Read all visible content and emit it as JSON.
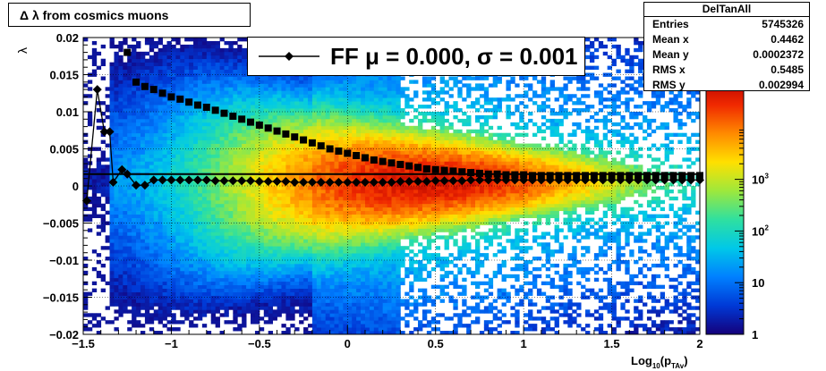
{
  "chart_data": {
    "type": "heatmap",
    "title": "Δ λ from cosmics muons",
    "xlabel": {
      "text": "Log",
      "sub1": "10",
      "mid": "(p",
      "sub2": "TAv",
      "end": ")"
    },
    "ylabel": "λ",
    "xlim": [
      -1.5,
      2
    ],
    "ylim": [
      -0.02,
      0.02
    ],
    "xticks": [
      {
        "v": -1.5,
        "label": "−1.5"
      },
      {
        "v": -1,
        "label": "−1"
      },
      {
        "v": -0.5,
        "label": "−0.5"
      },
      {
        "v": 0,
        "label": "0"
      },
      {
        "v": 0.5,
        "label": "0.5"
      },
      {
        "v": 1,
        "label": "1"
      },
      {
        "v": 1.5,
        "label": "1.5"
      },
      {
        "v": 2,
        "label": "2"
      }
    ],
    "yticks": [
      {
        "v": 0.02,
        "label": "0.02"
      },
      {
        "v": 0.015,
        "label": "0.015"
      },
      {
        "v": 0.01,
        "label": "0.01"
      },
      {
        "v": 0.005,
        "label": "0.005"
      },
      {
        "v": 0,
        "label": "0"
      },
      {
        "v": -0.005,
        "label": "−0.005"
      },
      {
        "v": -0.01,
        "label": "−0.01"
      },
      {
        "v": -0.015,
        "label": "−0.015"
      },
      {
        "v": -0.02,
        "label": "−0.02"
      }
    ],
    "grid": true,
    "colorbar": {
      "scale": "log",
      "range": [
        1,
        100000
      ],
      "ticks": [
        {
          "v": 1,
          "label": "1"
        },
        {
          "v": 10,
          "label": "10"
        },
        {
          "v": 100,
          "label": "10",
          "sup": "2"
        },
        {
          "v": 1000,
          "label": "10",
          "sup": "3"
        }
      ],
      "colors": [
        "#14007a",
        "#0039d6",
        "#0080ff",
        "#00c8e8",
        "#2fe0a0",
        "#9ee83c",
        "#ffe000",
        "#ff8a00",
        "#f02800",
        "#b00000"
      ]
    },
    "legend": {
      "position": "top",
      "text": "FF μ =  0.000, σ =   0.001",
      "marker": "diamond"
    },
    "fit_line_y": 0.0016,
    "series": [
      {
        "marker": "square",
        "x": [
          -1.25,
          -1.2,
          -1.15,
          -1.1,
          -1.05,
          -1.0,
          -0.95,
          -0.9,
          -0.85,
          -0.8,
          -0.75,
          -0.7,
          -0.65,
          -0.6,
          -0.55,
          -0.5,
          -0.45,
          -0.4,
          -0.35,
          -0.3,
          -0.25,
          -0.2,
          -0.15,
          -0.1,
          -0.05,
          0.0,
          0.05,
          0.1,
          0.15,
          0.2,
          0.25,
          0.3,
          0.35,
          0.4,
          0.45,
          0.5,
          0.55,
          0.6,
          0.65,
          0.7,
          0.75,
          0.8,
          0.85,
          0.9,
          0.95,
          1.0,
          1.05,
          1.1,
          1.15,
          1.2,
          1.25,
          1.3,
          1.35,
          1.4,
          1.45,
          1.5,
          1.55,
          1.6,
          1.65,
          1.7,
          1.75,
          1.8,
          1.85,
          1.9,
          1.95,
          2.0
        ],
        "y": [
          0.018,
          0.014,
          0.0134,
          0.013,
          0.0125,
          0.012,
          0.0117,
          0.0113,
          0.0109,
          0.0106,
          0.0102,
          0.0098,
          0.0094,
          0.009,
          0.0086,
          0.0082,
          0.0078,
          0.0074,
          0.007,
          0.0066,
          0.0062,
          0.0058,
          0.0054,
          0.005,
          0.0047,
          0.0044,
          0.0041,
          0.0038,
          0.0035,
          0.0033,
          0.0031,
          0.0029,
          0.0027,
          0.0025,
          0.0023,
          0.0022,
          0.0021,
          0.002,
          0.0019,
          0.0018,
          0.0017,
          0.0016,
          0.0016,
          0.0015,
          0.0015,
          0.0015,
          0.0014,
          0.0014,
          0.0014,
          0.0014,
          0.0014,
          0.0014,
          0.0014,
          0.0014,
          0.0014,
          0.0014,
          0.0014,
          0.0014,
          0.0014,
          0.0014,
          0.0014,
          0.0014,
          0.0014,
          0.0014,
          0.0014,
          0.0014
        ]
      },
      {
        "marker": "diamond",
        "x": [
          -1.48,
          -1.42,
          -1.38,
          -1.35,
          -1.33,
          -1.28,
          -1.25,
          -1.2,
          -1.15,
          -1.1,
          -1.05,
          -1.0,
          -0.95,
          -0.9,
          -0.85,
          -0.8,
          -0.75,
          -0.7,
          -0.65,
          -0.6,
          -0.55,
          -0.5,
          -0.45,
          -0.4,
          -0.35,
          -0.3,
          -0.25,
          -0.2,
          -0.15,
          -0.1,
          -0.05,
          0.0,
          0.05,
          0.1,
          0.15,
          0.2,
          0.25,
          0.3,
          0.35,
          0.4,
          0.45,
          0.5,
          0.55,
          0.6,
          0.65,
          0.7,
          0.75,
          0.8,
          0.85,
          0.9,
          0.95,
          1.0,
          1.05,
          1.1,
          1.15,
          1.2,
          1.25,
          1.3,
          1.35,
          1.4,
          1.45,
          1.5,
          1.55,
          1.6,
          1.65,
          1.7,
          1.75,
          1.8,
          1.85,
          1.9,
          1.95,
          2.0
        ],
        "y": [
          -0.002,
          0.013,
          0.0073,
          0.0073,
          0.0005,
          0.0022,
          0.0016,
          0.0001,
          0.0001,
          0.0008,
          0.0008,
          0.0008,
          0.0008,
          0.0008,
          0.0008,
          0.0008,
          0.0007,
          0.0007,
          0.0007,
          0.0007,
          0.0007,
          0.0006,
          0.0006,
          0.0006,
          0.0006,
          0.0005,
          0.0005,
          0.0005,
          0.0005,
          0.0005,
          0.0005,
          0.0005,
          0.0005,
          0.0005,
          0.0005,
          0.0005,
          0.0005,
          0.0006,
          0.0006,
          0.0006,
          0.0006,
          0.0007,
          0.0007,
          0.0007,
          0.0007,
          0.0008,
          0.0008,
          0.0008,
          0.0008,
          0.0008,
          0.0008,
          0.0008,
          0.0008,
          0.0008,
          0.0008,
          0.0008,
          0.0008,
          0.0008,
          0.0008,
          0.0008,
          0.0008,
          0.0008,
          0.0008,
          0.0008,
          0.0008,
          0.0008,
          0.0008,
          0.0008,
          0.0008,
          0.0008,
          0.0008,
          0.0008
        ]
      }
    ]
  },
  "stats": {
    "title": "DelTanAll",
    "rows": [
      {
        "label": "Entries",
        "value": "5745326"
      },
      {
        "label": "Mean x",
        "value": "0.4462"
      },
      {
        "label": "Mean y",
        "value": "0.0002372"
      },
      {
        "label": "RMS x",
        "value": "0.5485"
      },
      {
        "label": "RMS y",
        "value": "0.002994"
      }
    ]
  }
}
